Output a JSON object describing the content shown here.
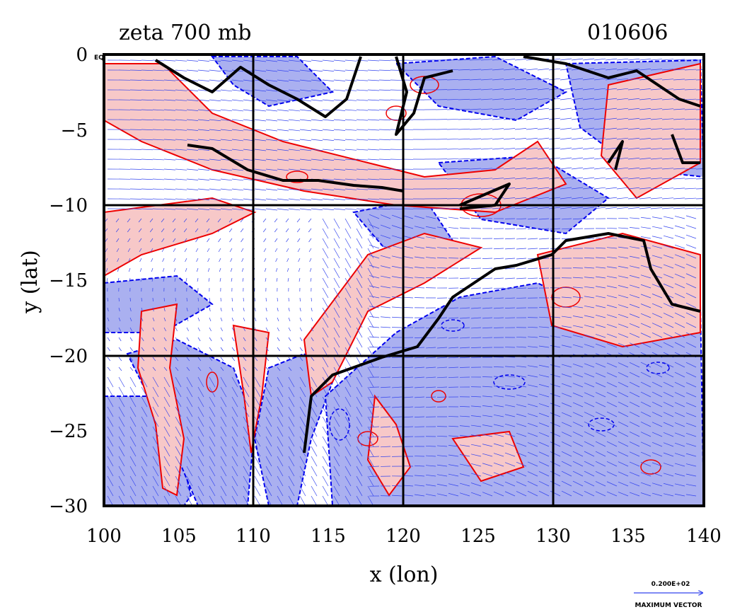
{
  "title_left": "zeta 700 mb",
  "title_right": "010606",
  "map": {
    "x_label": "x (lon)",
    "y_label": "y (lat)",
    "x_range": [
      100,
      140
    ],
    "y_range": [
      -30,
      0
    ],
    "x_ticks": [
      "100",
      "105",
      "110",
      "115",
      "120",
      "125",
      "130",
      "135",
      "140"
    ],
    "y_ticks": [
      "0",
      "−5",
      "−10",
      "−15",
      "−20",
      "−25",
      "−30"
    ],
    "eq_label": "EQ",
    "grid_lons": [
      110,
      120,
      130
    ],
    "grid_lats": [
      -10,
      -20
    ]
  },
  "legend": {
    "vector_scale": "0.200E+02",
    "vector_caption": "MAXIMUM VECTOR"
  },
  "colors": {
    "negative_fill": "#aab0f0",
    "positive_fill": "#f7c8c8",
    "negative_contour": "#0000ee",
    "positive_contour": "#ee0000",
    "vectors": "#3344ee",
    "coastline": "#000000"
  },
  "legend_semantics": {
    "fill_negative": "negative vorticity (blue)",
    "fill_positive": "positive vorticity (red)"
  }
}
